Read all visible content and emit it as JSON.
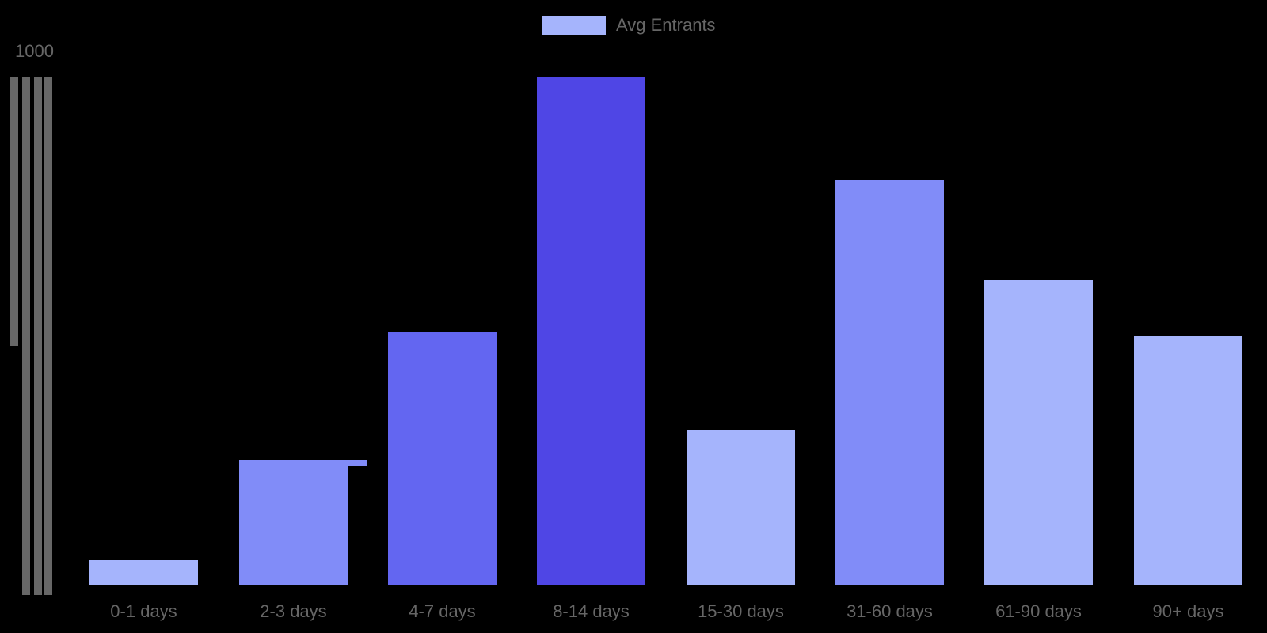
{
  "chart_data": {
    "type": "bar",
    "title": "",
    "xlabel": "",
    "ylabel": "",
    "ylim": [
      0,
      1000
    ],
    "grid": false,
    "legend_position": "top",
    "legend": [
      "Avg Entrants"
    ],
    "y_ticks": [
      "1000"
    ],
    "categories": [
      "0-1 days",
      "2-3 days",
      "4-7 days",
      "8-14 days",
      "15-30 days",
      "31-60 days",
      "61-90 days",
      "90+ days"
    ],
    "series": [
      {
        "name": "Avg Entrants",
        "values": [
          46,
          234,
          473,
          952,
          291,
          758,
          571,
          466
        ],
        "colors": [
          "#A5B4FC",
          "#818CF8",
          "#6366F1",
          "#4F46E5",
          "#A5B4FC",
          "#818CF8",
          "#A5B4FC",
          "#A5B4FC"
        ]
      }
    ]
  },
  "legend": {
    "label": "Avg Entrants",
    "color": "#A5B4FC"
  },
  "y_axis": {
    "top_label": "1000"
  },
  "x_axis": {
    "labels": [
      "0-1 days",
      "2-3 days",
      "4-7 days",
      "8-14 days",
      "15-30 days",
      "31-60 days",
      "61-90 days",
      "90+ days"
    ]
  }
}
